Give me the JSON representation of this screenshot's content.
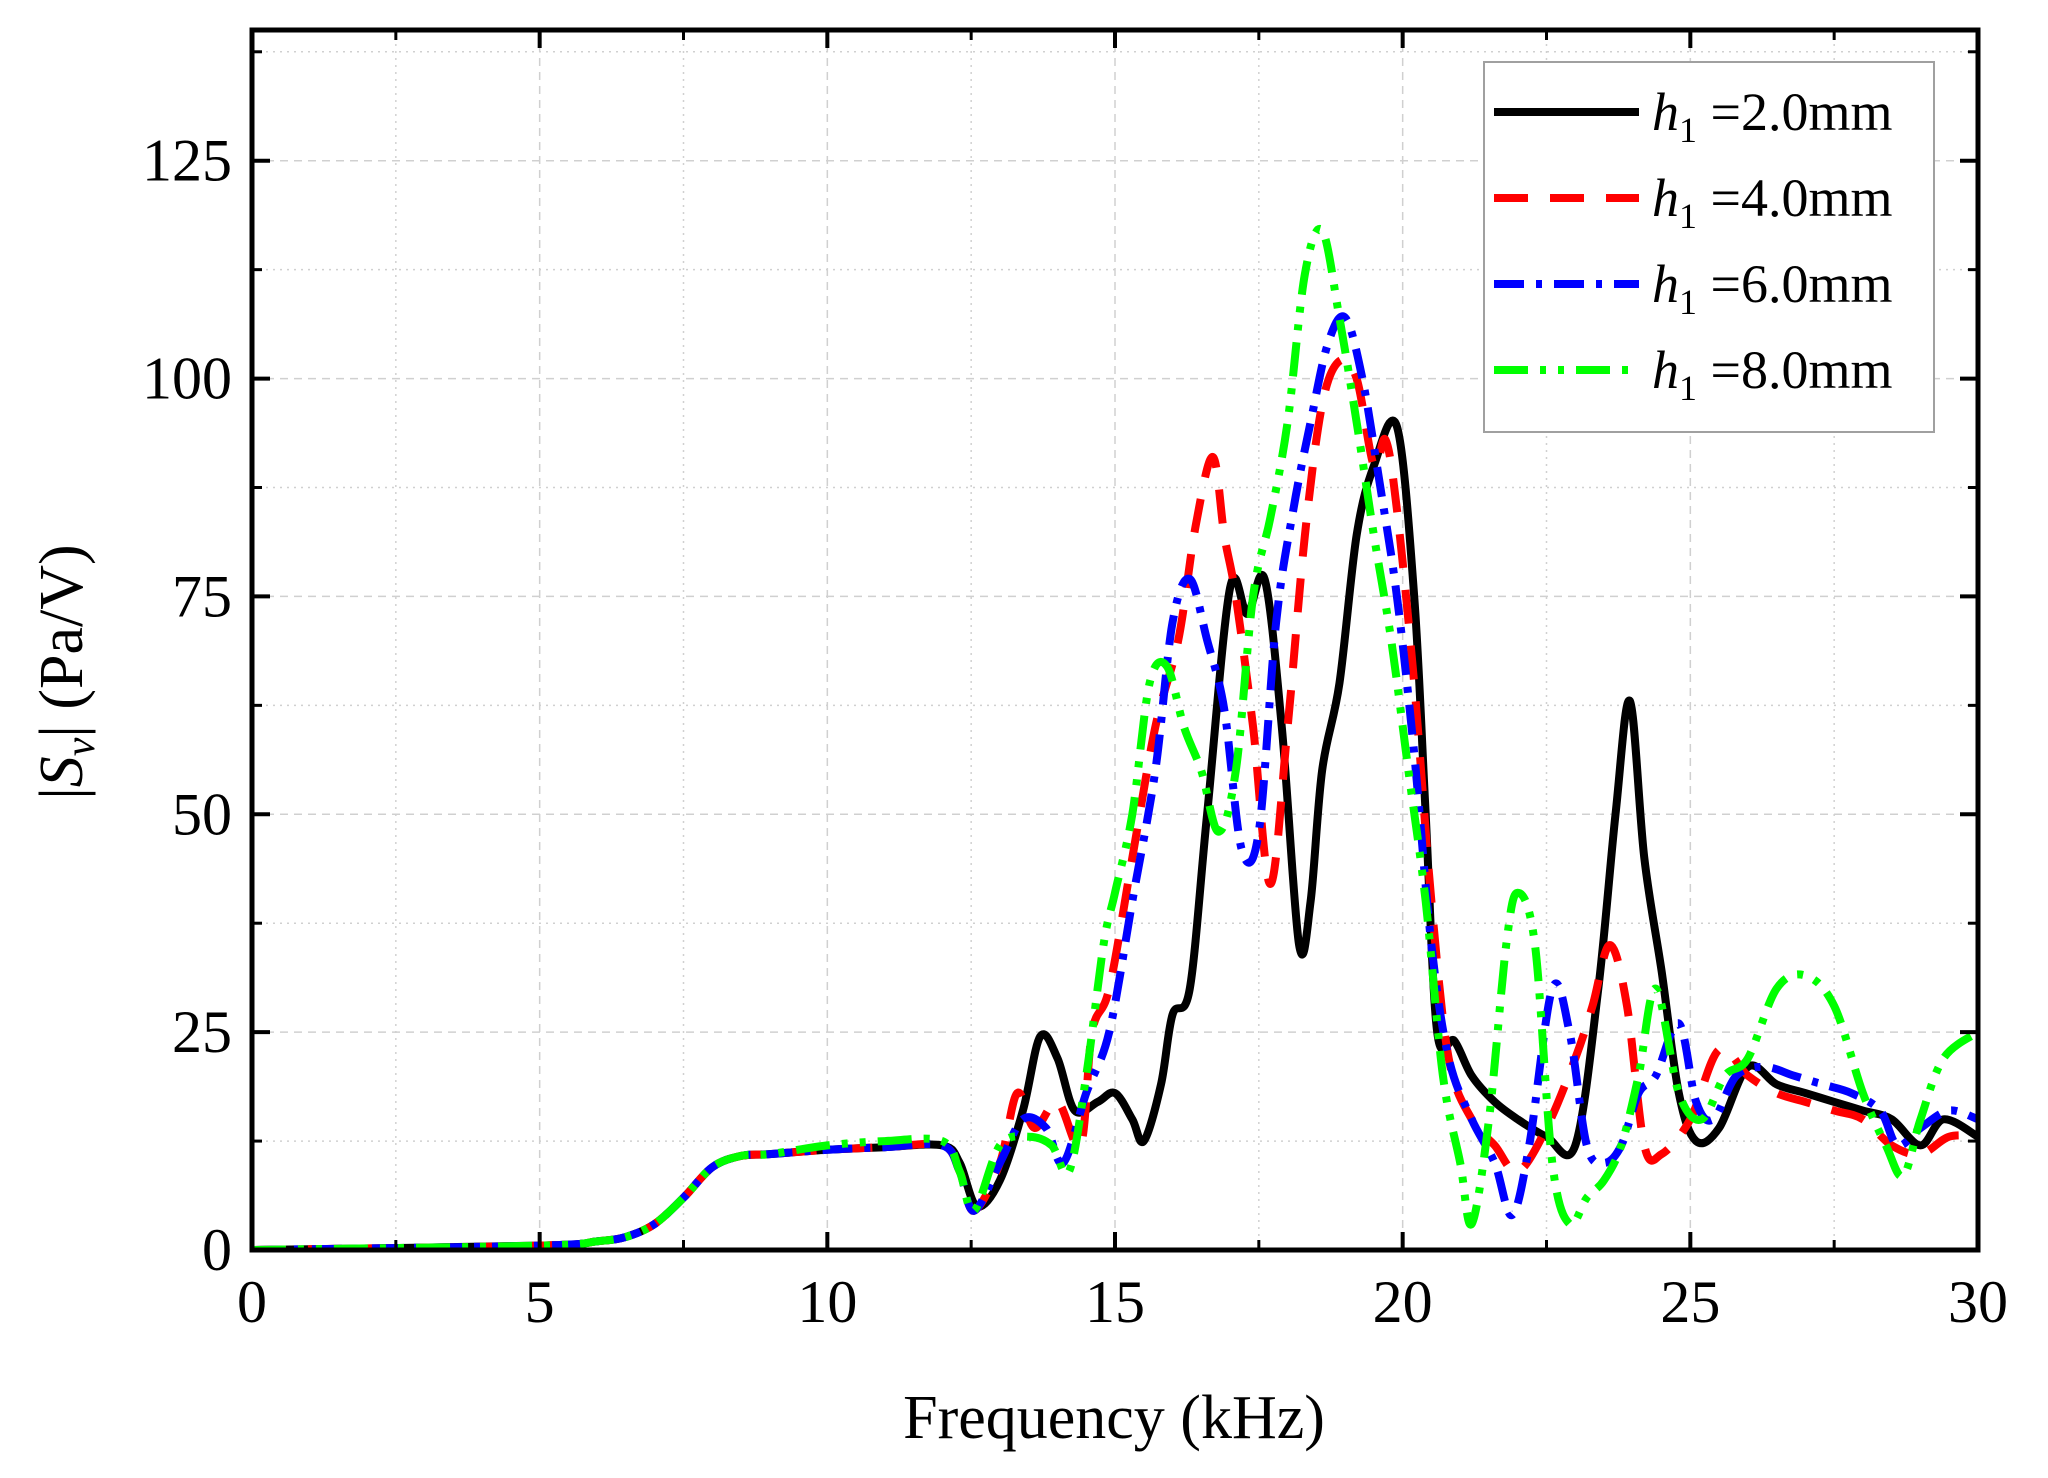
{
  "chart_data": {
    "type": "line",
    "title": "",
    "xlabel": "Frequency (kHz)",
    "ylabel": {
      "prefix": "|",
      "var": "S",
      "sub": "v",
      "suffix": "| (Pa/V)"
    },
    "xlim": [
      0,
      30
    ],
    "ylim": [
      0,
      140
    ],
    "xticks": [
      0,
      5,
      10,
      15,
      20,
      25,
      30
    ],
    "yticks": [
      0,
      25,
      50,
      75,
      100,
      125
    ],
    "xtick_labels": [
      "0",
      "5",
      "10",
      "15",
      "20",
      "25",
      "30"
    ],
    "ytick_labels": [
      "0",
      "25",
      "50",
      "75",
      "100",
      "125"
    ],
    "grid": true,
    "legend_position": "top-right",
    "series": [
      {
        "name": "h1 =2.0mm",
        "legend": {
          "var": "h",
          "sub": "1",
          "text": " =2.0mm"
        },
        "color": "#000000",
        "dash": "solid",
        "x": [
          0,
          5,
          6,
          6.5,
          7,
          7.5,
          8,
          8.5,
          9,
          10,
          11,
          12,
          12.3,
          12.6,
          13,
          13.4,
          13.7,
          14,
          14.3,
          14.7,
          15,
          15.3,
          15.5,
          15.8,
          16,
          16.3,
          16.6,
          17,
          17.3,
          17.6,
          17.9,
          18.2,
          18.4,
          18.6,
          18.9,
          19.2,
          19.5,
          19.9,
          20.2,
          20.4,
          20.6,
          20.9,
          21.2,
          21.6,
          22,
          22.5,
          23,
          23.4,
          23.7,
          23.95,
          24.2,
          24.5,
          24.8,
          25.1,
          25.5,
          26,
          26.5,
          27,
          27.5,
          28,
          28.5,
          29,
          29.4,
          30
        ],
        "y": [
          0,
          0.5,
          1,
          1.5,
          3,
          6,
          9.5,
          10.8,
          11,
          11.5,
          11.8,
          12,
          10,
          5,
          8,
          16,
          24.5,
          22,
          16,
          17,
          18,
          15,
          12.5,
          19,
          27,
          30,
          50,
          76,
          73,
          77,
          60,
          35,
          40,
          55,
          65,
          82,
          90,
          94.5,
          75,
          50,
          25,
          24,
          20,
          17,
          15,
          13,
          12,
          30,
          50,
          63,
          45,
          32,
          18,
          12.5,
          14,
          21,
          19,
          18,
          17,
          16,
          15,
          12,
          15,
          13
        ]
      },
      {
        "name": "h1 =4.0mm",
        "legend": {
          "var": "h",
          "sub": "1",
          "text": " =4.0mm"
        },
        "color": "#ff0000",
        "dash": "dashed",
        "x": [
          0,
          5,
          6,
          6.5,
          7,
          7.5,
          8,
          8.5,
          9,
          10,
          11,
          12,
          12.3,
          12.55,
          13,
          13.3,
          13.6,
          14,
          14.4,
          14.6,
          14.9,
          15.3,
          15.7,
          16.1,
          16.4,
          16.7,
          16.9,
          17.1,
          17.4,
          17.7,
          18.0,
          18.3,
          18.6,
          18.9,
          19.2,
          19.5,
          19.7,
          19.9,
          20.2,
          20.5,
          20.8,
          21.2,
          21.6,
          22,
          22.5,
          23,
          23.3,
          23.6,
          23.9,
          24.2,
          24.5,
          25,
          25.5,
          26,
          26.5,
          27,
          27.5,
          28,
          28.5,
          29,
          29.5,
          30
        ],
        "y": [
          0,
          0.5,
          1,
          1.5,
          3,
          6,
          9.5,
          10.8,
          11,
          11.5,
          11.8,
          12,
          9,
          4.5,
          10,
          18,
          14,
          17,
          12,
          25,
          30,
          45,
          60,
          70,
          83,
          91,
          82,
          75,
          60,
          42,
          60,
          82,
          97,
          102,
          100,
          90,
          93,
          85,
          65,
          40,
          22,
          15,
          12,
          9,
          14,
          22,
          28,
          35,
          28,
          12,
          11,
          15,
          23,
          20,
          18,
          17,
          16,
          15,
          12,
          11,
          13,
          13
        ]
      },
      {
        "name": "h1 =6.0mm",
        "legend": {
          "var": "h",
          "sub": "1",
          "text": " =6.0mm"
        },
        "color": "#0000ff",
        "dash": "dashdot",
        "x": [
          0,
          5,
          6,
          6.5,
          7,
          7.5,
          8,
          8.5,
          9,
          10,
          11,
          12,
          12.3,
          12.55,
          13,
          13.4,
          13.8,
          14.1,
          14.5,
          14.9,
          15.3,
          15.7,
          16.0,
          16.3,
          16.6,
          16.9,
          17.2,
          17.5,
          17.8,
          18.1,
          18.4,
          18.7,
          19.0,
          19.3,
          19.6,
          19.9,
          20.2,
          20.5,
          20.8,
          21.2,
          21.6,
          21.9,
          22.2,
          22.6,
          22.9,
          23.2,
          23.5,
          23.8,
          24.1,
          24.4,
          24.8,
          25.1,
          25.4,
          25.8,
          26.3,
          26.8,
          27.3,
          27.8,
          28.3,
          28.6,
          29,
          29.5,
          30
        ],
        "y": [
          0,
          0.5,
          1,
          1.5,
          3,
          6,
          9.5,
          10.8,
          11,
          11.5,
          11.8,
          12,
          9,
          4.5,
          10,
          15,
          14,
          10,
          18,
          25,
          40,
          55,
          72,
          77,
          70,
          62,
          46,
          48,
          72,
          85,
          95,
          104,
          107,
          100,
          88,
          75,
          57,
          35,
          22,
          15,
          10,
          4,
          12,
          30,
          25,
          12,
          10,
          12,
          18,
          20,
          26,
          17,
          15,
          20,
          21,
          20,
          19,
          18,
          16,
          12,
          14,
          16,
          15
        ]
      },
      {
        "name": "h1 =8.0mm",
        "legend": {
          "var": "h",
          "sub": "1",
          "text": " =8.0mm"
        },
        "color": "#00ff00",
        "dash": "dashdotdot",
        "x": [
          0,
          5,
          6,
          6.5,
          7,
          7.5,
          8,
          8.5,
          9,
          10,
          11,
          12,
          12.3,
          12.55,
          13,
          13.5,
          13.9,
          14.2,
          14.5,
          14.8,
          15.0,
          15.3,
          15.6,
          15.9,
          16.2,
          16.5,
          16.8,
          17.1,
          17.4,
          17.7,
          18.0,
          18.3,
          18.6,
          18.9,
          19.2,
          19.5,
          19.8,
          20.1,
          20.4,
          20.7,
          21.0,
          21.2,
          21.5,
          21.8,
          22.0,
          22.3,
          22.6,
          22.9,
          23.2,
          23.5,
          23.8,
          24.1,
          24.4,
          24.8,
          25.2,
          25.6,
          26.0,
          26.5,
          27.0,
          27.5,
          28.0,
          28.4,
          28.7,
          29.0,
          29.4,
          30
        ],
        "y": [
          0,
          0.5,
          1,
          1.5,
          3,
          6,
          9.5,
          10.8,
          11,
          12,
          12.5,
          12.5,
          9,
          4.5,
          12,
          13,
          12,
          9,
          20,
          35,
          41,
          50,
          65,
          67,
          60,
          55,
          48,
          55,
          75,
          84,
          95,
          112,
          117,
          107,
          95,
          82,
          70,
          55,
          40,
          20,
          10,
          3,
          15,
          35,
          41,
          35,
          10,
          3,
          6,
          8,
          12,
          20,
          30,
          18,
          15,
          20,
          22,
          30,
          31.5,
          28,
          18,
          12,
          8.5,
          15,
          22,
          25
        ]
      }
    ]
  }
}
